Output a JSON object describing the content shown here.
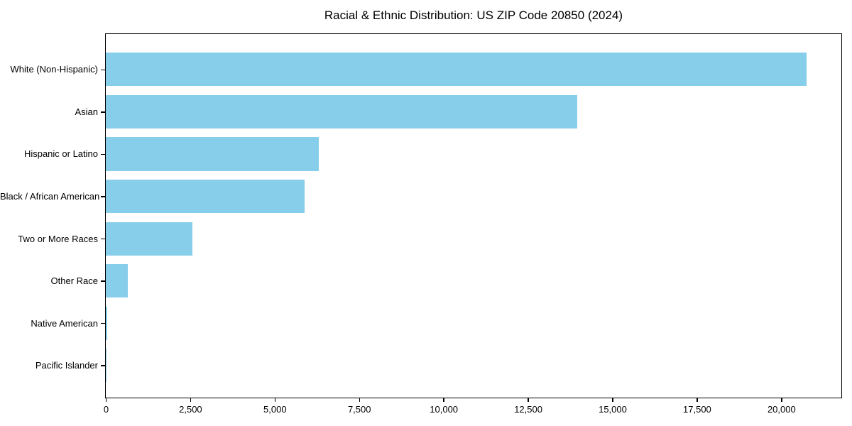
{
  "chart_data": {
    "type": "bar",
    "orientation": "horizontal",
    "title": "Racial & Ethnic Distribution: US ZIP Code 20850 (2024)",
    "categories": [
      "White (Non-Hispanic)",
      "Asian",
      "Hispanic or Latino",
      "Black / African American",
      "Two or More Races",
      "Other Race",
      "Native American",
      "Pacific Islander"
    ],
    "values": [
      20740,
      13960,
      6300,
      5880,
      2560,
      650,
      50,
      10
    ],
    "xlabel": "",
    "ylabel": "",
    "xlim": [
      0,
      21780
    ],
    "x_ticks": [
      0,
      2500,
      5000,
      7500,
      10000,
      12500,
      15000,
      17500,
      20000
    ],
    "x_tick_labels": [
      "0",
      "2,500",
      "5,000",
      "7,500",
      "10,000",
      "12,500",
      "15,000",
      "17,500",
      "20,000"
    ],
    "bar_color": "#87CEEB",
    "axis_color": "#000000",
    "grid": false,
    "legend": null
  }
}
